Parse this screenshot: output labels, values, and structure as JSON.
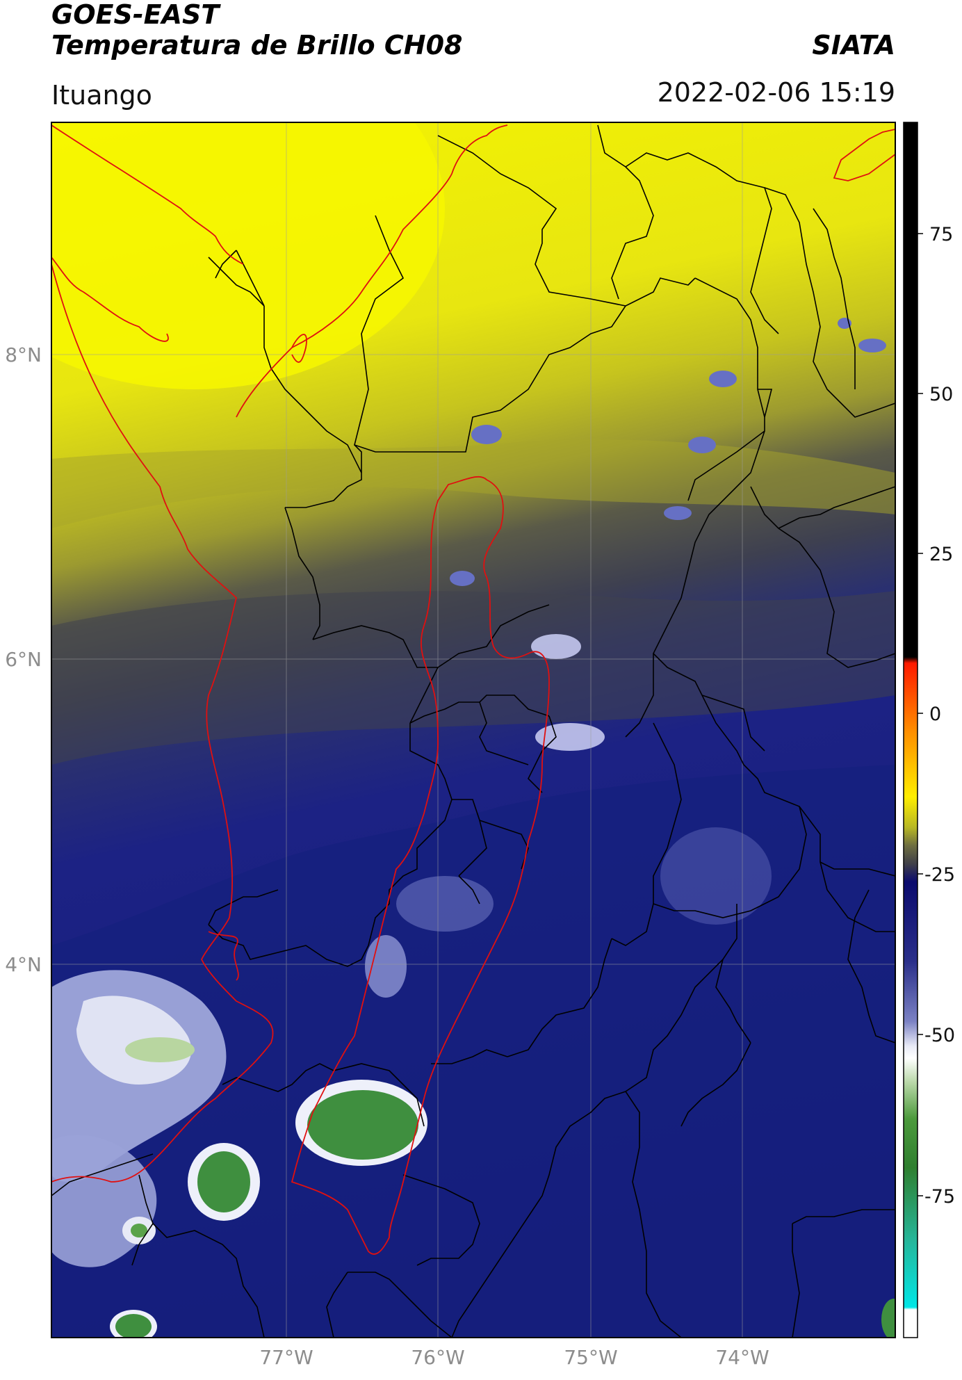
{
  "header": {
    "title_line1": "GOES-EAST",
    "title_line2": "Temperatura de Brillo CH08",
    "brand": "SIATA",
    "location": "Ituango",
    "timestamp": "2022-02-06 15:19"
  },
  "map": {
    "latitude_labels": [
      "8°N",
      "6°N",
      "4°N"
    ],
    "longitude_labels": [
      "77°W",
      "76°W",
      "75°W",
      "74°W"
    ],
    "colors": {
      "warm_yellow": "#f0f000",
      "olive": "#b8b820",
      "gray": "#4a4a50",
      "navy": "#1a1f80",
      "light_blue": "#a8b0e0",
      "green": "#3f8f3f",
      "region_outline": "#e01010",
      "boundaries": "#000000"
    }
  },
  "colorbar": {
    "tick_labels": [
      "75",
      "50",
      "25",
      "0",
      "-25",
      "-50",
      "-75"
    ],
    "colors": {
      "black": "#000000",
      "red": "#ff1a00",
      "orange": "#ff8c00",
      "yellow": "#ffee00",
      "olive": "#8a8a30",
      "navy": "#0b0b6e",
      "lavender": "#c0c4ec",
      "green": "#2f7f2f",
      "teal": "#26b69a",
      "cyan": "#00e6e6"
    }
  }
}
